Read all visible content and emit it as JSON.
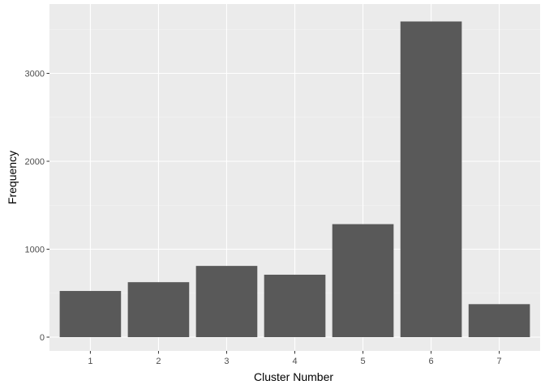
{
  "chart_data": {
    "type": "bar",
    "title": "",
    "xlabel": "Cluster Number",
    "ylabel": "Frequency",
    "categories": [
      "1",
      "2",
      "3",
      "4",
      "5",
      "6",
      "7"
    ],
    "values": [
      525,
      625,
      810,
      710,
      1285,
      3590,
      375
    ],
    "ylim": [
      0,
      3760
    ],
    "yticks": [
      0,
      1000,
      2000,
      3000
    ],
    "ytick_labels": [
      "0",
      "1000",
      "2000",
      "3000"
    ],
    "grid": true,
    "legend": "none",
    "colors": {
      "bar": "#595959",
      "panel": "#ebebeb",
      "grid_major": "#ffffff",
      "tick_text": "#4d4d4d"
    }
  }
}
